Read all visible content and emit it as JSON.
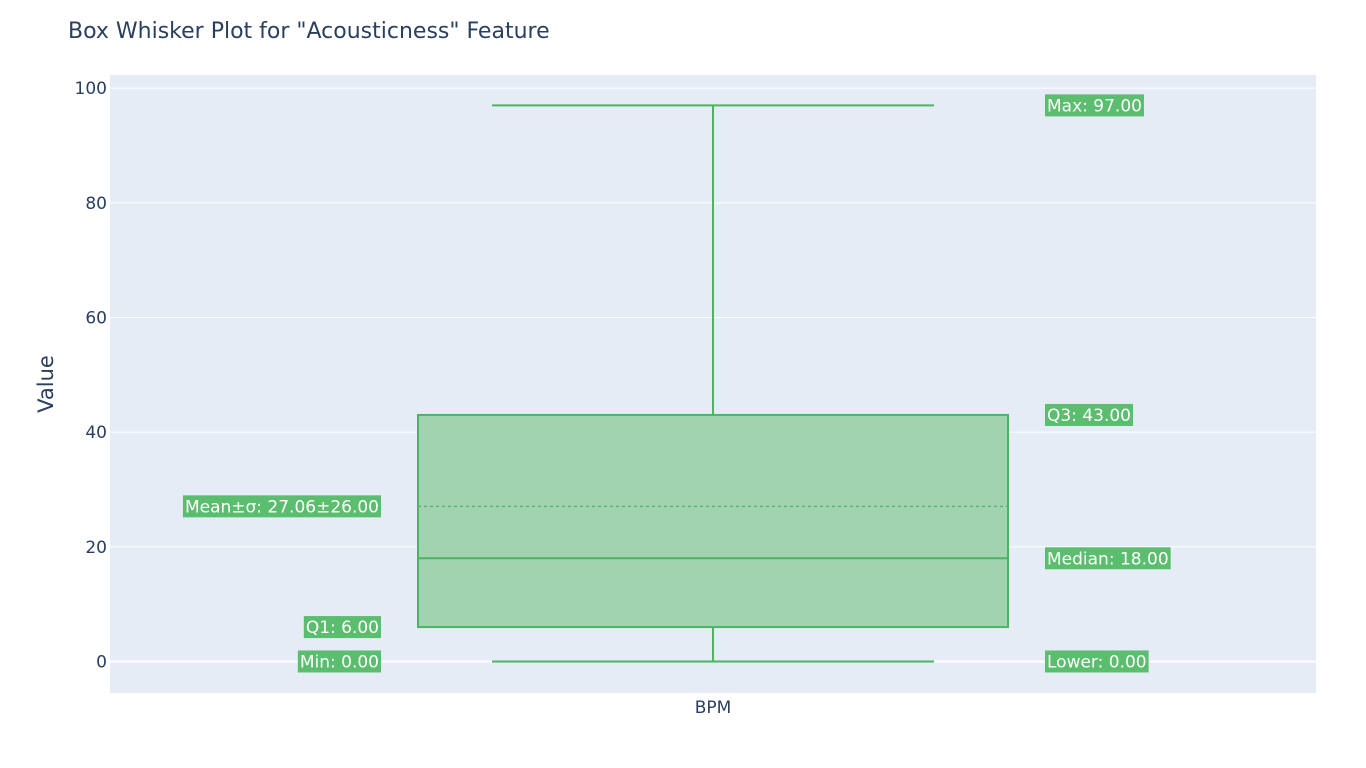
{
  "chart_data": {
    "type": "box",
    "title": "Box Whisker Plot for \"Acousticness\" Feature",
    "xlabel": "",
    "ylabel": "Value",
    "categories": [
      "BPM"
    ],
    "ylim": [
      -5.5,
      102.3
    ],
    "yticks": [
      0,
      20,
      40,
      60,
      80,
      100
    ],
    "grid": true,
    "legend": "none",
    "colors": {
      "box_line": "#4cb560",
      "box_fill": "#a1d3b1",
      "annotation_bg": "#5bbd6e",
      "plot_bg": "#e5ecf6",
      "text": "#2a3f5f"
    },
    "stats": {
      "min": 0,
      "lower_fence": 0,
      "q1": 6,
      "median": 18,
      "mean": 27.06,
      "sd": 26.0,
      "q3": 43,
      "max": 97
    },
    "annotations": [
      {
        "id": "max",
        "text": "Max: 97.00",
        "y": 97,
        "side": "right"
      },
      {
        "id": "q3",
        "text": "Q3: 43.00",
        "y": 43,
        "side": "right"
      },
      {
        "id": "median",
        "text": "Median: 18.00",
        "y": 18,
        "side": "right"
      },
      {
        "id": "lower",
        "text": "Lower:  0.00",
        "y": 0,
        "side": "right"
      },
      {
        "id": "mean",
        "text": "Mean±σ: 27.06±26.00",
        "y": 27.06,
        "side": "left"
      },
      {
        "id": "q1",
        "text": "Q1:  6.00",
        "y": 6,
        "side": "left"
      },
      {
        "id": "min",
        "text": "Min:  0.00",
        "y": 0,
        "side": "left"
      }
    ]
  }
}
